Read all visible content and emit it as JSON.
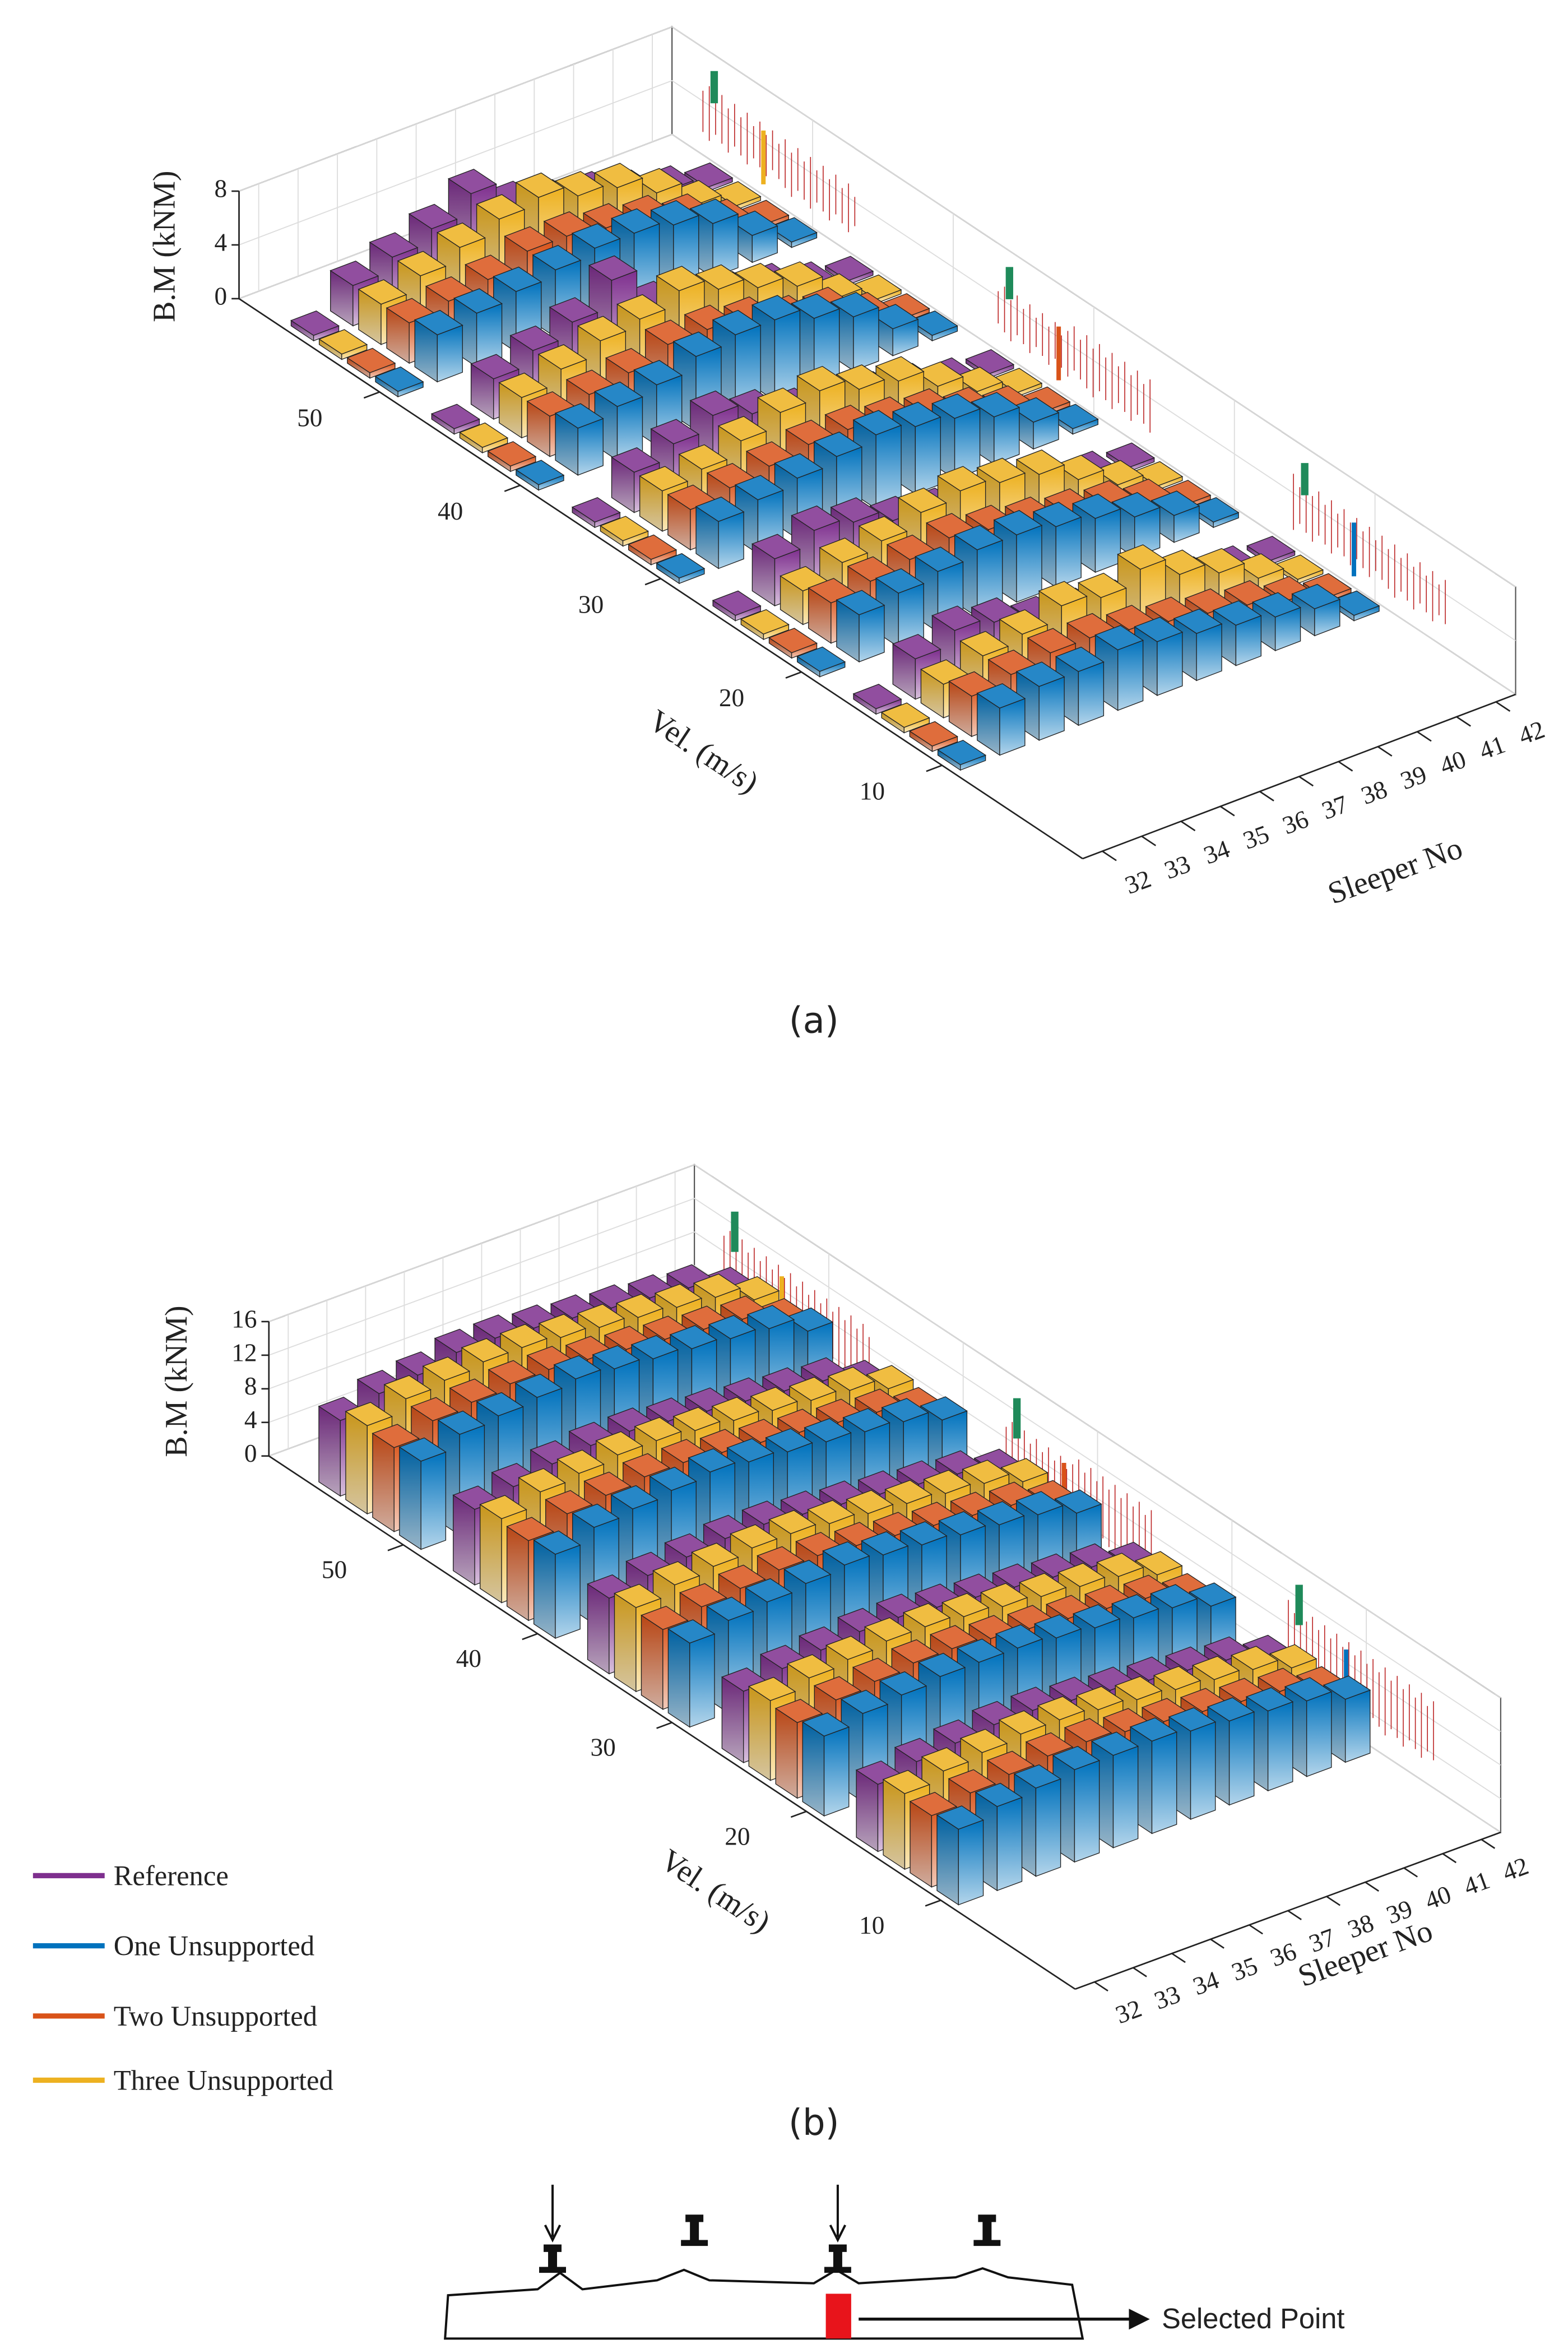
{
  "chart_data": [
    {
      "type": "bar3d",
      "caption": "(a)",
      "ylabel": "B.M (kNM)",
      "velocity_label": "Vel. (m/s)",
      "sleeper_label": "Sleeper No",
      "velocities": [
        10,
        20,
        30,
        40,
        50
      ],
      "categories": [
        32,
        33,
        34,
        35,
        36,
        37,
        38,
        39,
        40,
        41,
        42
      ],
      "ylim": [
        0,
        8
      ],
      "yticks": [
        0,
        4,
        8
      ],
      "grid": true,
      "series": [
        {
          "color": "#7e2f8e",
          "values": [
            [
              0.4,
              3,
              4,
              3.5,
              2.5,
              2,
              1.5,
              1.2,
              1,
              0.7,
              0.3
            ],
            [
              0.4,
              3.5,
              4.5,
              4,
              3,
              2.5,
              2,
              1.5,
              1.2,
              0.8,
              0.3
            ],
            [
              0.4,
              3,
              4,
              5,
              4,
              3,
              2.5,
              2,
              1.5,
              0.8,
              0.3
            ],
            [
              0.4,
              3,
              4,
              5,
              7,
              4,
              3,
              2.5,
              2,
              1,
              0.3
            ],
            [
              0.4,
              3,
              4,
              5,
              6.5,
              4.5,
              3.5,
              3,
              2,
              1.2,
              0.3
            ]
          ]
        },
        {
          "color": "#0072bd",
          "values": [
            [
              0.4,
              3.5,
              4,
              4,
              4.5,
              4,
              3.5,
              3,
              2.5,
              2,
              0.4
            ],
            [
              0.4,
              3.5,
              4,
              4.5,
              5,
              5,
              4.5,
              4,
              3,
              2,
              0.4
            ],
            [
              0.4,
              3.5,
              4,
              4.5,
              5,
              5.5,
              5,
              4.5,
              3.5,
              2,
              0.4
            ],
            [
              0.4,
              3.5,
              4,
              4.5,
              5.5,
              6,
              6,
              5,
              4,
              2,
              0.4
            ],
            [
              0.4,
              3.5,
              4,
              4.5,
              5,
              5.5,
              5.5,
              5,
              4,
              2,
              0.4
            ]
          ]
        },
        {
          "color": "#d95319",
          "values": [
            [
              0.4,
              3,
              3.5,
              4,
              4,
              3.5,
              3,
              2.5,
              2,
              1.2,
              0.3
            ],
            [
              0.4,
              3,
              3.5,
              4,
              4.5,
              4,
              3.5,
              3,
              2.5,
              1.5,
              0.3
            ],
            [
              0.4,
              3,
              3.5,
              4,
              4.5,
              4.5,
              4,
              3.5,
              2.5,
              1.5,
              0.3
            ],
            [
              0.4,
              3,
              3.5,
              4,
              5,
              5,
              4.5,
              3.5,
              3,
              1.5,
              0.3
            ],
            [
              0.4,
              3,
              3.5,
              4,
              5,
              5,
              4.5,
              4,
              3,
              1.5,
              0.3
            ]
          ]
        },
        {
          "color": "#edb120",
          "values": [
            [
              0.4,
              2.5,
              3.5,
              4,
              5,
              4.5,
              5.5,
              4,
              3,
              1.5,
              0.3
            ],
            [
              0.4,
              2.5,
              3.5,
              4,
              5,
              5.5,
              5,
              4.5,
              3,
              1.5,
              0.3
            ],
            [
              0.4,
              3,
              3.5,
              4.5,
              5.5,
              6,
              5,
              4.5,
              3,
              1.5,
              0.3
            ],
            [
              0.4,
              3,
              4,
              5,
              5.5,
              6.5,
              5.5,
              4.5,
              3.5,
              1.5,
              0.3
            ],
            [
              0.4,
              3,
              4,
              5,
              6,
              6.5,
              5.5,
              5,
              3.5,
              1.5,
              0.3
            ]
          ]
        }
      ]
    },
    {
      "type": "bar3d",
      "caption": "(b)",
      "ylabel": "B.M (kNM)",
      "velocity_label": "Vel. (m/s)",
      "sleeper_label": "Sleeper No",
      "velocities": [
        10,
        20,
        30,
        40,
        50
      ],
      "categories": [
        32,
        33,
        34,
        35,
        36,
        37,
        38,
        39,
        40,
        41,
        42
      ],
      "ylim": [
        0,
        16
      ],
      "yticks": [
        0,
        4,
        8,
        12,
        16
      ],
      "grid": true,
      "series": [
        {
          "name": "Reference",
          "color": "#7e2f8e",
          "values": [
            [
              8,
              9,
              9.5,
              10,
              10,
              9.5,
              9,
              8.5,
              8,
              7.5,
              6
            ],
            [
              8.5,
              9.5,
              10,
              10.5,
              10.5,
              10,
              9.5,
              9,
              8.5,
              8,
              6.5
            ],
            [
              9,
              10,
              10.5,
              11,
              11,
              10.5,
              10,
              9.5,
              9,
              8.5,
              7
            ],
            [
              9,
              10,
              11,
              11.5,
              11.5,
              11,
              10.5,
              10,
              9.5,
              9,
              7
            ],
            [
              9,
              10.5,
              11,
              12,
              12,
              11.5,
              11,
              10.5,
              10,
              9.5,
              7.5
            ]
          ]
        },
        {
          "name": "One Unsupported",
          "color": "#0072bd",
          "values": [
            [
              9,
              10,
              10.5,
              11,
              11,
              11,
              10.5,
              10,
              9.5,
              9,
              7.5
            ],
            [
              9.5,
              10.5,
              11,
              11.5,
              11.5,
              11.5,
              11,
              10.5,
              10,
              9.5,
              8
            ],
            [
              10,
              11,
              11.5,
              12,
              12.5,
              12,
              11.5,
              11,
              10.5,
              10,
              8.5
            ],
            [
              10,
              11.5,
              12,
              12.5,
              13,
              12.5,
              12,
              11.5,
              11,
              10.5,
              9
            ],
            [
              10.5,
              12,
              12.5,
              13,
              13.5,
              13,
              12.5,
              12,
              11.5,
              11,
              9
            ]
          ]
        },
        {
          "name": "Two Unsupported",
          "color": "#d95319",
          "values": [
            [
              8.5,
              9.5,
              10,
              10.5,
              10.5,
              10,
              9.5,
              9,
              8.5,
              8,
              6.5
            ],
            [
              9,
              10,
              10.5,
              11,
              11,
              10.5,
              10,
              9.5,
              9,
              8.5,
              7
            ],
            [
              9.5,
              10.5,
              11,
              11.5,
              11.5,
              11,
              10.5,
              10,
              9.5,
              9,
              7.5
            ],
            [
              9.5,
              11,
              11.5,
              12,
              12,
              11.5,
              11,
              10.5,
              10,
              9.5,
              8
            ],
            [
              10,
              11.5,
              12,
              12.5,
              12.5,
              12,
              11.5,
              11,
              10.5,
              10,
              8
            ]
          ]
        },
        {
          "name": "Three Unsupported",
          "color": "#edb120",
          "values": [
            [
              9,
              10,
              10.5,
              11,
              11,
              10.5,
              10,
              9.5,
              9,
              8.5,
              7
            ],
            [
              9.5,
              10.5,
              11,
              11.5,
              11.5,
              11,
              10.5,
              10,
              9.5,
              9,
              7.5
            ],
            [
              10,
              11,
              11.5,
              12,
              12,
              11.5,
              11,
              10.5,
              10,
              9.5,
              8
            ],
            [
              10,
              11.5,
              12,
              12.5,
              12.5,
              12,
              11.5,
              11,
              10.5,
              10,
              8.5
            ],
            [
              10.5,
              12,
              12.5,
              13,
              13,
              12.5,
              12,
              11.5,
              11,
              10.5,
              8.5
            ]
          ]
        }
      ]
    }
  ],
  "diagram": {
    "label": "Selected Point"
  }
}
